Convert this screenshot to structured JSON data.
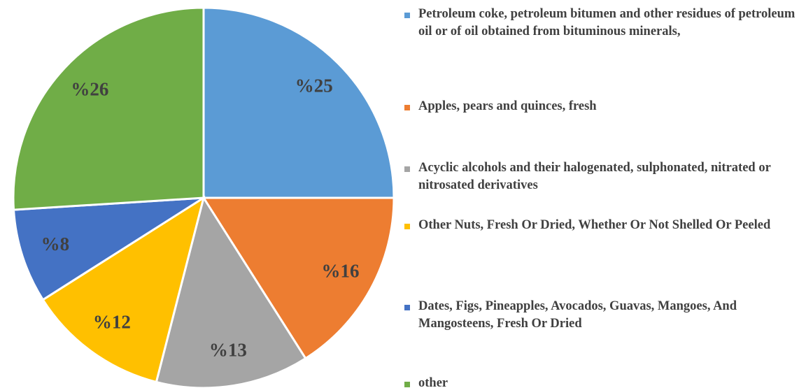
{
  "chart_data": {
    "type": "pie",
    "categories": [
      "Petroleum coke, petroleum bitumen and other residues of petroleum oil or of oil obtained from bituminous minerals,",
      "Apples, pears and quinces, fresh",
      "Acyclic alcohols and their halogenated, sulphonated, nitrated or nitrosated derivatives",
      "Other Nuts, Fresh Or Dried, Whether Or Not Shelled Or Peeled",
      "Dates, Figs, Pineapples, Avocados, Guavas, Mangoes, And Mangosteens, Fresh Or Dried",
      "other"
    ],
    "values": [
      25,
      16,
      13,
      12,
      8,
      26
    ],
    "value_labels": [
      "%25",
      "%16",
      "%13",
      "%12",
      "%8",
      "%26"
    ],
    "colors": [
      "#5b9bd5",
      "#ed7d31",
      "#a5a5a5",
      "#ffc000",
      "#4472c4",
      "#70ad47"
    ],
    "legend": "right"
  }
}
